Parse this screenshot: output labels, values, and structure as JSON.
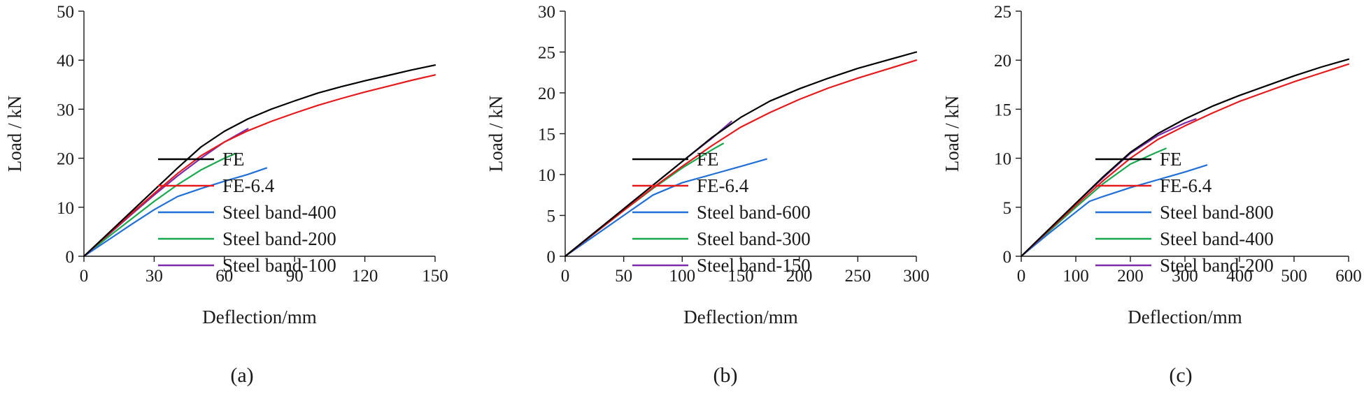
{
  "chart_data": [
    {
      "type": "line",
      "caption": "(a)",
      "title": "",
      "xlabel": "Deflection/mm",
      "ylabel": "Load / kN",
      "xlim": [
        0,
        150
      ],
      "ylim": [
        0,
        50
      ],
      "xticks": [
        "0",
        "30",
        "60",
        "90",
        "120",
        "150"
      ],
      "yticks": [
        "0",
        "10",
        "20",
        "30",
        "40",
        "50"
      ],
      "legend_position": "center-right",
      "series": [
        {
          "name": "FE",
          "color": "#000000",
          "x": [
            0,
            10,
            20,
            30,
            40,
            50,
            60,
            70,
            80,
            90,
            100,
            110,
            120,
            130,
            140,
            150
          ],
          "y": [
            0,
            4.5,
            9,
            13.5,
            18,
            22.3,
            25.5,
            28,
            30,
            31.7,
            33.3,
            34.6,
            35.8,
            36.9,
            38,
            39
          ]
        },
        {
          "name": "FE-6.4",
          "color": "#e41a1c",
          "x": [
            0,
            10,
            20,
            30,
            40,
            50,
            60,
            70,
            80,
            90,
            100,
            110,
            120,
            130,
            140,
            150
          ],
          "y": [
            0,
            4.3,
            8.6,
            12.8,
            16.9,
            20.5,
            23.3,
            25.6,
            27.5,
            29.2,
            30.8,
            32.2,
            33.5,
            34.7,
            35.9,
            37
          ]
        },
        {
          "name": "Steel band-400",
          "color": "#1f6fd6",
          "x": [
            0,
            10,
            20,
            30,
            40,
            50,
            60,
            70,
            78
          ],
          "y": [
            0,
            3.2,
            6.4,
            9.5,
            12.2,
            13.8,
            15.3,
            16.7,
            18
          ]
        },
        {
          "name": "Steel band-200",
          "color": "#18a84e",
          "x": [
            0,
            10,
            20,
            30,
            40,
            50,
            60,
            65
          ],
          "y": [
            0,
            3.8,
            7.5,
            11.2,
            14.6,
            17.6,
            20,
            21
          ]
        },
        {
          "name": "Steel band-100",
          "color": "#7a2aa8",
          "x": [
            0,
            10,
            20,
            30,
            40,
            50,
            60,
            70
          ],
          "y": [
            0,
            4.2,
            8.4,
            12.5,
            16.4,
            20,
            23.3,
            26
          ]
        }
      ]
    },
    {
      "type": "line",
      "caption": "(b)",
      "title": "",
      "xlabel": "Deflection/mm",
      "ylabel": "Load / kN",
      "xlim": [
        0,
        300
      ],
      "ylim": [
        0,
        30
      ],
      "xticks": [
        "0",
        "50",
        "100",
        "150",
        "200",
        "250",
        "300"
      ],
      "yticks": [
        "0",
        "5",
        "10",
        "15",
        "20",
        "25",
        "30"
      ],
      "legend_position": "center-right",
      "series": [
        {
          "name": "FE",
          "color": "#000000",
          "x": [
            0,
            25,
            50,
            75,
            100,
            125,
            150,
            175,
            200,
            225,
            250,
            275,
            300
          ],
          "y": [
            0,
            2.9,
            5.8,
            8.7,
            11.6,
            14.5,
            17,
            19,
            20.5,
            21.8,
            23,
            24,
            25
          ]
        },
        {
          "name": "FE-6.4",
          "color": "#e41a1c",
          "x": [
            0,
            25,
            50,
            75,
            100,
            125,
            150,
            175,
            200,
            225,
            250,
            275,
            300
          ],
          "y": [
            0,
            2.8,
            5.6,
            8.4,
            11,
            13.5,
            15.8,
            17.6,
            19.2,
            20.6,
            21.8,
            22.9,
            24
          ]
        },
        {
          "name": "Steel band-600",
          "color": "#1f6fd6",
          "x": [
            0,
            25,
            50,
            75,
            100,
            125,
            150,
            172
          ],
          "y": [
            0,
            2.5,
            5,
            7.5,
            9,
            10,
            11,
            11.9
          ]
        },
        {
          "name": "Steel band-300",
          "color": "#18a84e",
          "x": [
            0,
            25,
            50,
            75,
            100,
            125,
            135
          ],
          "y": [
            0,
            2.8,
            5.6,
            8.3,
            10.8,
            13,
            13.8
          ]
        },
        {
          "name": "Steel band-150",
          "color": "#7a2aa8",
          "x": [
            0,
            25,
            50,
            75,
            100,
            125,
            142
          ],
          "y": [
            0,
            2.9,
            5.8,
            8.7,
            11.6,
            14.4,
            16.5
          ]
        }
      ]
    },
    {
      "type": "line",
      "caption": "(c)",
      "title": "",
      "xlabel": "Deflection/mm",
      "ylabel": "Load / kN",
      "xlim": [
        0,
        600
      ],
      "ylim": [
        0,
        25
      ],
      "xticks": [
        "0",
        "100",
        "200",
        "300",
        "400",
        "500",
        "600"
      ],
      "yticks": [
        "0",
        "5",
        "10",
        "15",
        "20",
        "25"
      ],
      "legend_position": "center-right",
      "series": [
        {
          "name": "FE",
          "color": "#000000",
          "x": [
            0,
            50,
            100,
            150,
            200,
            250,
            300,
            350,
            400,
            450,
            500,
            550,
            600
          ],
          "y": [
            0,
            2.7,
            5.4,
            8.1,
            10.6,
            12.5,
            14,
            15.3,
            16.4,
            17.4,
            18.4,
            19.3,
            20.1
          ]
        },
        {
          "name": "FE-6.4",
          "color": "#e41a1c",
          "x": [
            0,
            50,
            100,
            150,
            200,
            250,
            300,
            350,
            400,
            450,
            500,
            550,
            600
          ],
          "y": [
            0,
            2.6,
            5.2,
            7.7,
            10,
            11.9,
            13.3,
            14.6,
            15.8,
            16.8,
            17.8,
            18.7,
            19.6
          ]
        },
        {
          "name": "Steel band-800",
          "color": "#1f6fd6",
          "x": [
            0,
            50,
            100,
            125,
            150,
            200,
            250,
            300,
            340
          ],
          "y": [
            0,
            2.3,
            4.5,
            5.6,
            6.1,
            7,
            7.8,
            8.6,
            9.3
          ]
        },
        {
          "name": "Steel band-400",
          "color": "#18a84e",
          "x": [
            0,
            50,
            100,
            150,
            200,
            240,
            265
          ],
          "y": [
            0,
            2.5,
            5,
            7.4,
            9.4,
            10.4,
            11
          ]
        },
        {
          "name": "Steel band-200",
          "color": "#7a2aa8",
          "x": [
            0,
            50,
            100,
            150,
            200,
            250,
            300,
            320
          ],
          "y": [
            0,
            2.7,
            5.4,
            8,
            10.5,
            12.3,
            13.6,
            14
          ]
        }
      ]
    }
  ]
}
